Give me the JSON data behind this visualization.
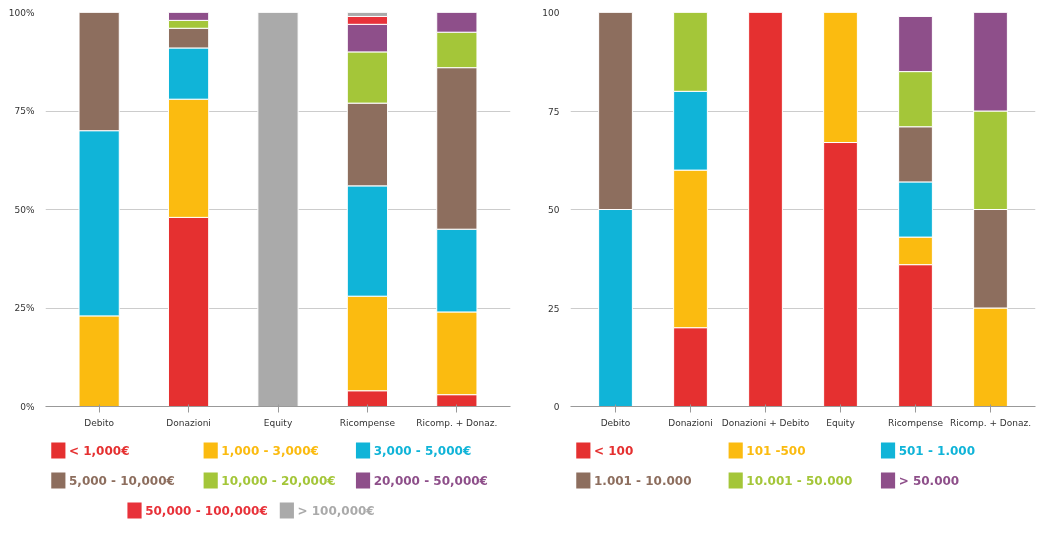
{
  "chart_data": [
    {
      "type": "bar",
      "stacked": true,
      "categories": [
        "Debito",
        "Donazioni",
        "Equity",
        "Ricompense",
        "Ricomp. + Donaz."
      ],
      "ylim": [
        0,
        100
      ],
      "yticks": [
        {
          "value": 0,
          "label": "0%"
        },
        {
          "value": 25,
          "label": "25%"
        },
        {
          "value": 50,
          "label": "50%"
        },
        {
          "value": 75,
          "label": "75%"
        },
        {
          "value": 100,
          "label": "100%"
        }
      ],
      "grid": "y",
      "legend": "bottom",
      "series": [
        {
          "name": "< 1,000€",
          "color": "#e53030",
          "values": [
            0,
            48,
            0,
            4,
            3
          ]
        },
        {
          "name": "1,000 - 3,000€",
          "color": "#fbbb10",
          "values": [
            23,
            30,
            0,
            24,
            21
          ]
        },
        {
          "name": "3,000 - 5,000€",
          "color": "#10b4d8",
          "values": [
            47,
            13,
            0,
            28,
            21
          ]
        },
        {
          "name": "5,000 - 10,000€",
          "color": "#8d6e5e",
          "values": [
            30,
            5,
            0,
            21,
            41
          ]
        },
        {
          "name": "10,000 - 20,000€",
          "color": "#a4c639",
          "values": [
            0,
            2,
            0,
            13,
            9
          ]
        },
        {
          "name": "20,000 - 50,000€",
          "color": "#8e4f8a",
          "values": [
            0,
            2,
            0,
            7,
            5
          ]
        },
        {
          "name": "50,000 - 100,000€",
          "color": "#e8323a",
          "values": [
            0,
            0,
            0,
            2,
            0
          ]
        },
        {
          "name": "> 100,000€",
          "color": "#aaaaaa",
          "values": [
            0,
            0,
            100,
            1,
            0
          ]
        }
      ]
    },
    {
      "type": "bar",
      "stacked": true,
      "categories": [
        "Debito",
        "Donazioni",
        "Donazioni + Debito",
        "Equity",
        "Ricompense",
        "Ricomp. + Donaz."
      ],
      "ylim": [
        0,
        100
      ],
      "yticks": [
        0,
        25,
        50,
        75,
        100
      ],
      "grid": "y",
      "legend": "bottom",
      "series": [
        {
          "name": "< 100",
          "color": "#e53030",
          "values": [
            0,
            20,
            100,
            67,
            36,
            0
          ]
        },
        {
          "name": "101 -500",
          "color": "#fbbb10",
          "values": [
            0,
            40,
            0,
            33,
            7,
            25
          ]
        },
        {
          "name": "501 - 1.000",
          "color": "#10b4d8",
          "values": [
            50,
            20,
            0,
            0,
            14,
            0
          ]
        },
        {
          "name": "1.001 - 10.000",
          "color": "#8d6e5e",
          "values": [
            50,
            0,
            0,
            0,
            14,
            25
          ]
        },
        {
          "name": "10.001 - 50.000",
          "color": "#a4c639",
          "values": [
            0,
            20,
            0,
            0,
            14,
            25
          ]
        },
        {
          "name": "> 50.000",
          "color": "#8e4f8a",
          "values": [
            0,
            0,
            0,
            0,
            14,
            25
          ]
        }
      ]
    }
  ]
}
